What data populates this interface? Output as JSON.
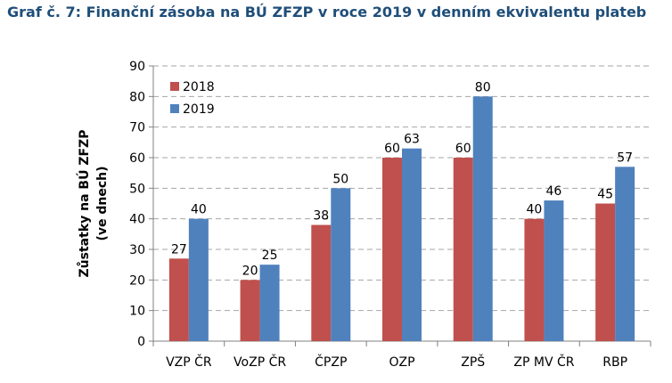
{
  "title": "Graf č. 7: Finanční zásoba na BÚ ZFZP v roce 2019 v denním ekvivalentu plateb",
  "chart_data": {
    "type": "bar",
    "title": "Graf č. 7: Finanční zásoba na BÚ ZFZP v roce 2019 v denním ekvivalentu plateb",
    "ylabel": "Zůstatky na BÚ ZFZP (ve dnech)",
    "ylabel_lines": [
      "Zůstatky na BÚ ZFZP",
      "(ve dnech)"
    ],
    "ylim": [
      0,
      90
    ],
    "yticks": [
      0,
      10,
      20,
      30,
      40,
      50,
      60,
      70,
      80,
      90
    ],
    "grid": "horizontal dashed",
    "legend_position": "top-left",
    "categories": [
      "VZP ČR",
      "VoZP ČR",
      "ČPZP",
      "OZP",
      "ZPŠ",
      "ZP MV ČR",
      "RBP"
    ],
    "series": [
      {
        "name": "2018",
        "color": "#c0504d",
        "values": [
          27,
          20,
          38,
          60,
          60,
          40,
          45
        ]
      },
      {
        "name": "2019",
        "color": "#4f81bd",
        "values": [
          40,
          25,
          50,
          63,
          80,
          46,
          57
        ]
      }
    ]
  }
}
